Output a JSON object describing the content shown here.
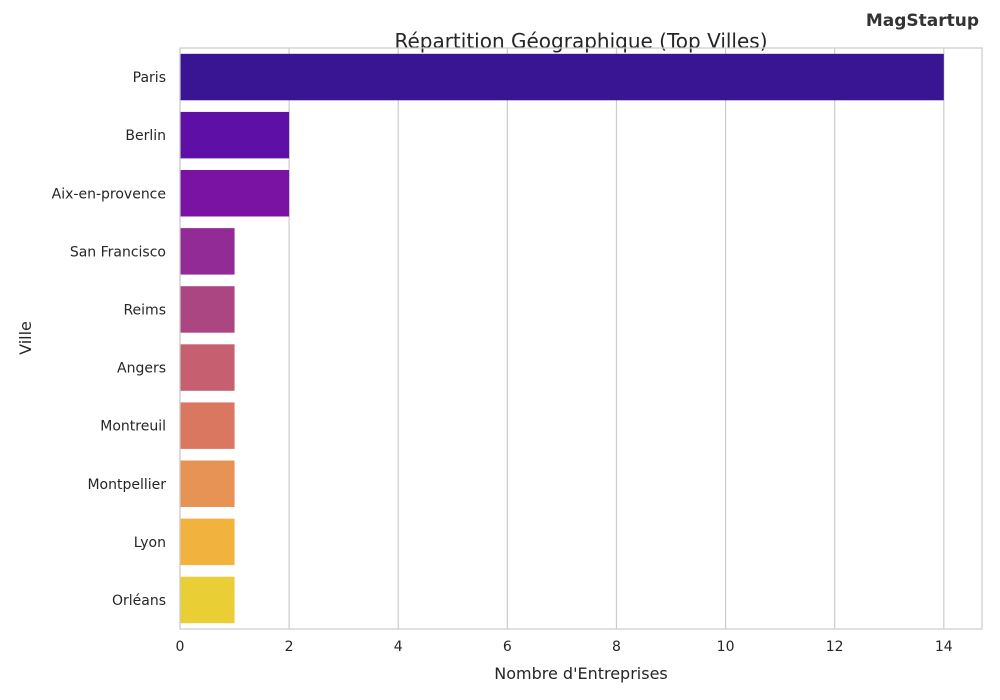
{
  "brand": "MagStartup",
  "chart_data": {
    "type": "bar",
    "orientation": "horizontal",
    "title": "Répartition Géographique (Top Villes)",
    "xlabel": "Nombre d'Entreprises",
    "ylabel": "Ville",
    "categories": [
      "Paris",
      "Berlin",
      "Aix-en-provence",
      "San Francisco",
      "Reims",
      "Angers",
      "Montreuil",
      "Montpellier",
      "Lyon",
      "Orléans"
    ],
    "values": [
      14,
      2,
      2,
      1,
      1,
      1,
      1,
      1,
      1,
      1
    ],
    "xlim": [
      0,
      14.7
    ],
    "xticks": [
      0,
      2,
      4,
      6,
      8,
      10,
      12,
      14
    ],
    "grid": "vertical",
    "colors": [
      "#3a1593",
      "#5e10a6",
      "#7a12a4",
      "#932b96",
      "#ac4683",
      "#c65f6f",
      "#da7760",
      "#e89356",
      "#f2b23e",
      "#e9ce36"
    ]
  }
}
